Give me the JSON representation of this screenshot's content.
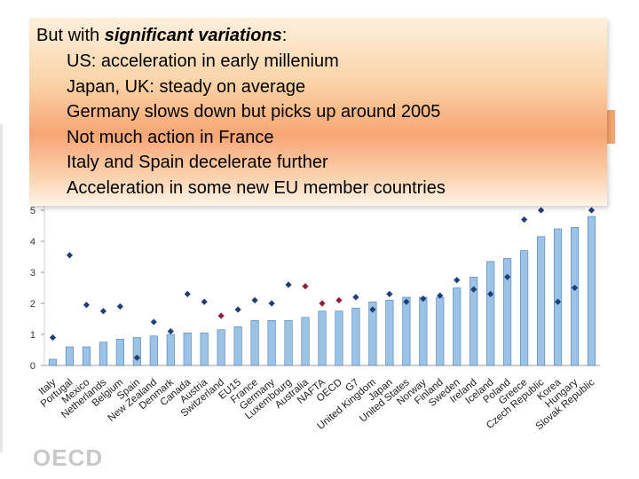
{
  "callout": {
    "title_plain": "But with ",
    "title_emph": "significant variations",
    "title_end": ":",
    "bullets": [
      "US: acceleration in early millenium",
      "Japan, UK: steady on average",
      "Germany slows down but picks up around 2005",
      "Not much action in France",
      "Italy and Spain decelerate further",
      "Acceleration in some new EU member countries"
    ]
  },
  "logo_text": "OECD",
  "colors": {
    "bar": "#9cc2e5",
    "bar_stroke": "#4a7fb3",
    "diamond": "#1f3f78",
    "diamond_highlight": "#8a2040",
    "axis": "#999999"
  },
  "chart_data": {
    "type": "bar",
    "categories": [
      "Italy",
      "Portugal",
      "Mexico",
      "Netherlands",
      "Belgium",
      "Spain",
      "New Zealand",
      "Denmark",
      "Canada",
      "Austria",
      "Switzerland",
      "EU15",
      "France",
      "Germany",
      "Luxembourg",
      "Australia",
      "NAFTA",
      "OECD",
      "G7",
      "United Kingdom",
      "Japan",
      "United States",
      "Norway",
      "Finland",
      "Sweden",
      "Ireland",
      "Iceland",
      "Poland",
      "Greece",
      "Czech Republic",
      "Korea",
      "Hungary",
      "Slovak Republic"
    ],
    "series": [
      {
        "type": "bar",
        "values": [
          0.2,
          0.6,
          0.6,
          0.75,
          0.85,
          0.9,
          0.95,
          1.0,
          1.05,
          1.05,
          1.15,
          1.25,
          1.45,
          1.45,
          1.45,
          1.55,
          1.75,
          1.75,
          1.85,
          2.05,
          2.1,
          2.2,
          2.2,
          2.2,
          2.5,
          2.85,
          3.35,
          3.45,
          3.7,
          4.15,
          4.4,
          4.45,
          4.8
        ]
      },
      {
        "type": "scatter",
        "values": [
          0.9,
          3.55,
          1.95,
          1.75,
          1.9,
          0.25,
          1.4,
          1.1,
          2.3,
          2.05,
          1.6,
          1.8,
          2.1,
          2.0,
          2.6,
          2.55,
          2.0,
          2.1,
          2.2,
          1.8,
          2.3,
          2.05,
          2.15,
          2.25,
          2.75,
          2.45,
          2.3,
          2.85,
          4.7,
          5.0,
          2.05,
          2.5,
          5.0
        ]
      }
    ],
    "highlight_markers": [
      "Switzerland",
      "Australia",
      "NAFTA",
      "OECD"
    ],
    "yticks": [
      0,
      1,
      2,
      3,
      4,
      5
    ],
    "ylim": [
      0,
      5.2
    ]
  }
}
